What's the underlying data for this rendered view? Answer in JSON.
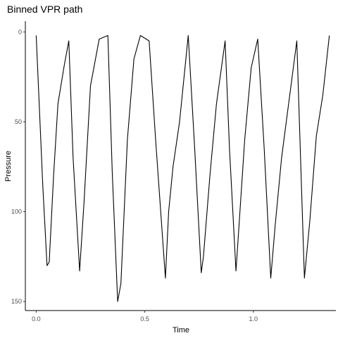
{
  "chart_data": {
    "type": "line",
    "title": "Binned VPR path",
    "xlabel": "Time",
    "ylabel": "Pressure",
    "xlim": [
      -0.05,
      1.38
    ],
    "ylim": [
      155,
      -6
    ],
    "y_reversed": true,
    "grid": false,
    "legend": "none",
    "x_ticks": [
      0.0,
      0.5,
      1.0
    ],
    "x_tick_labels": [
      "0.0",
      "0.5",
      "1.0"
    ],
    "y_ticks": [
      0,
      50,
      100,
      150
    ],
    "y_tick_labels": [
      "0",
      "50",
      "100",
      "150"
    ],
    "series": [
      {
        "color": "#000000",
        "x": [
          0.0,
          0.03,
          0.05,
          0.06,
          0.08,
          0.1,
          0.13,
          0.15,
          0.17,
          0.2,
          0.22,
          0.25,
          0.29,
          0.31,
          0.33,
          0.35,
          0.375,
          0.39,
          0.42,
          0.45,
          0.48,
          0.52,
          0.55,
          0.595,
          0.61,
          0.63,
          0.66,
          0.7,
          0.73,
          0.76,
          0.77,
          0.8,
          0.83,
          0.87,
          0.89,
          0.92,
          0.93,
          0.96,
          0.99,
          1.02,
          1.05,
          1.08,
          1.1,
          1.13,
          1.17,
          1.2,
          1.235,
          1.26,
          1.29,
          1.32,
          1.35
        ],
        "y": [
          2,
          85,
          130,
          128,
          80,
          40,
          18,
          5,
          70,
          133,
          95,
          30,
          4,
          3,
          2,
          78,
          150,
          140,
          60,
          15,
          2,
          5,
          60,
          137,
          100,
          75,
          50,
          2,
          65,
          134,
          125,
          80,
          40,
          5,
          65,
          133,
          115,
          60,
          20,
          4,
          65,
          137,
          108,
          70,
          33,
          5,
          137,
          105,
          58,
          35,
          2
        ]
      }
    ]
  }
}
